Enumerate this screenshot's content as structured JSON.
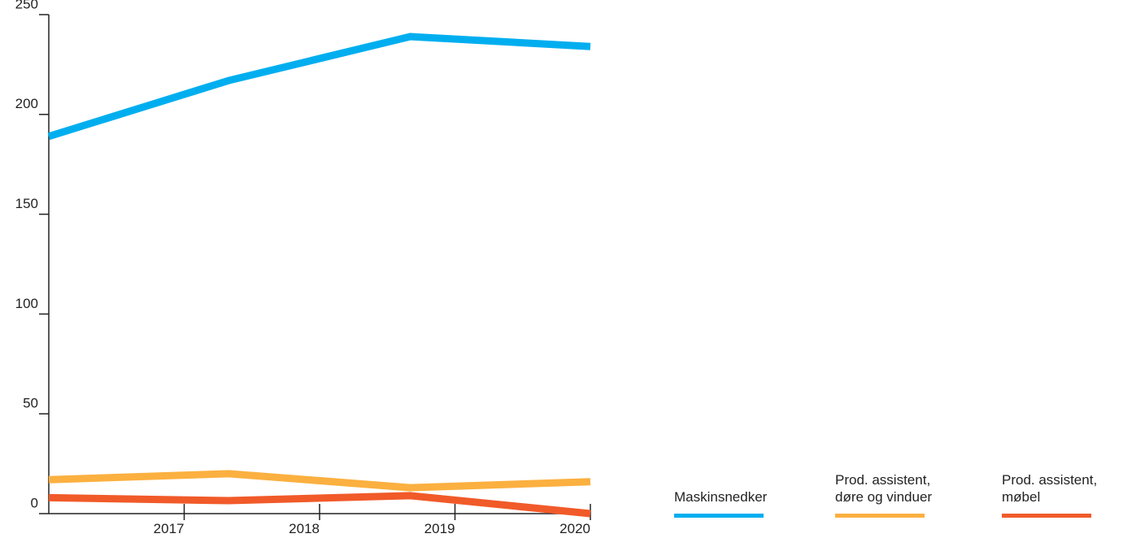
{
  "chart_data": {
    "type": "line",
    "x": [
      2016,
      2017.33,
      2018.67,
      2020
    ],
    "series": [
      {
        "name": "Maskinsnedker",
        "color": "#00aeef",
        "values": [
          189,
          217,
          239,
          234
        ]
      },
      {
        "name": "Prod. assistent, døre og vinduer",
        "color": "#fbb040",
        "values": [
          17,
          20,
          13,
          16
        ]
      },
      {
        "name": "Prod. assistent, møbel",
        "color": "#f15a29",
        "values": [
          8,
          6.5,
          9,
          0
        ]
      }
    ],
    "xlim": [
      2016,
      2020
    ],
    "xticks": [
      2017,
      2018,
      2019,
      2020
    ],
    "ylim": [
      0,
      250
    ],
    "yticks": [
      0,
      50,
      100,
      150,
      200,
      250
    ],
    "legend": "bottom-right"
  }
}
